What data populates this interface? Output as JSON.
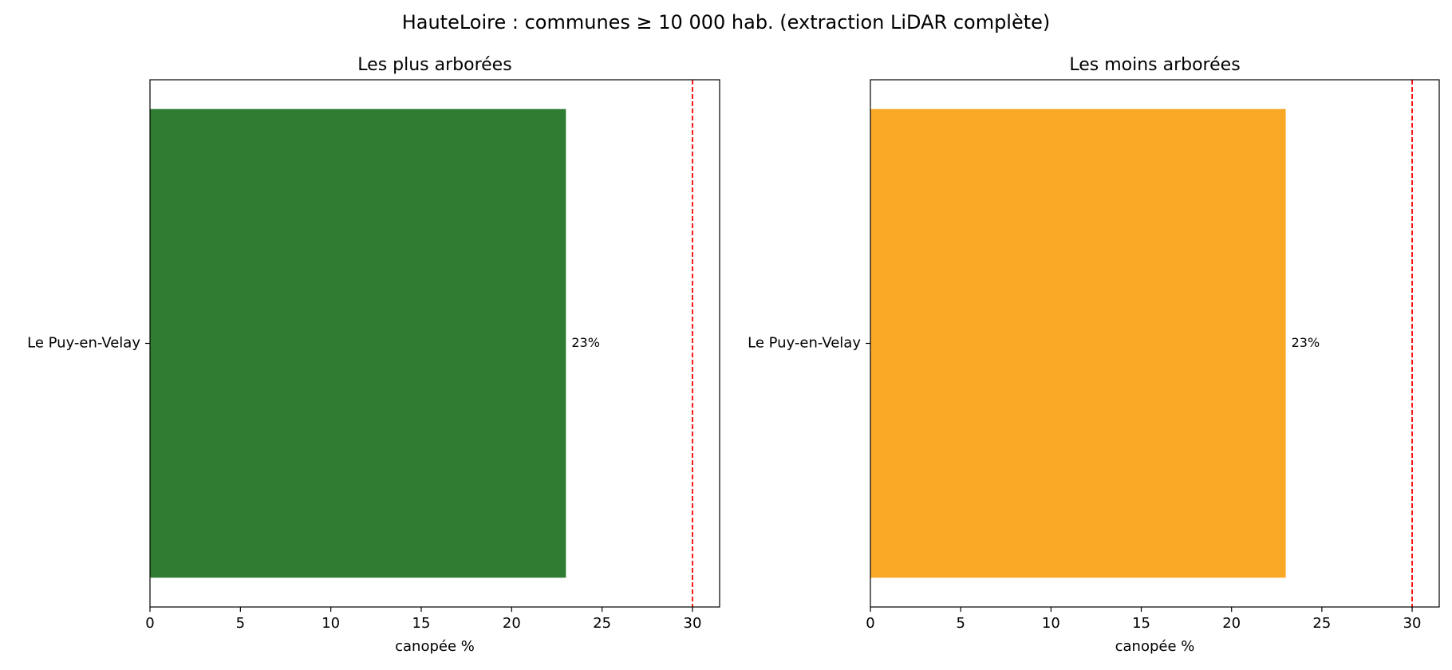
{
  "figure": {
    "suptitle": "HauteLoire : communes ≥ 10 000 hab. (extraction LiDAR complète)"
  },
  "chart_data": [
    {
      "type": "bar",
      "orientation": "horizontal",
      "title": "Les plus arborées",
      "xlabel": "canopée %",
      "ylabel": "",
      "categories": [
        "Le Puy-en-Velay"
      ],
      "values": [
        23
      ],
      "bar_labels": [
        "23%"
      ],
      "bar_color": "#2e7d32",
      "xlim": [
        0,
        31.5
      ],
      "xticks": [
        0,
        5,
        10,
        15,
        20,
        25,
        30
      ],
      "reference_line": {
        "x": 30,
        "color": "#ff0000",
        "style": "dashed"
      },
      "grid": false,
      "legend": "none"
    },
    {
      "type": "bar",
      "orientation": "horizontal",
      "title": "Les moins arborées",
      "xlabel": "canopée %",
      "ylabel": "",
      "categories": [
        "Le Puy-en-Velay"
      ],
      "values": [
        23
      ],
      "bar_labels": [
        "23%"
      ],
      "bar_color": "#f9a825",
      "xlim": [
        0,
        31.5
      ],
      "xticks": [
        0,
        5,
        10,
        15,
        20,
        25,
        30
      ],
      "reference_line": {
        "x": 30,
        "color": "#ff0000",
        "style": "dashed"
      },
      "grid": false,
      "legend": "none"
    }
  ]
}
